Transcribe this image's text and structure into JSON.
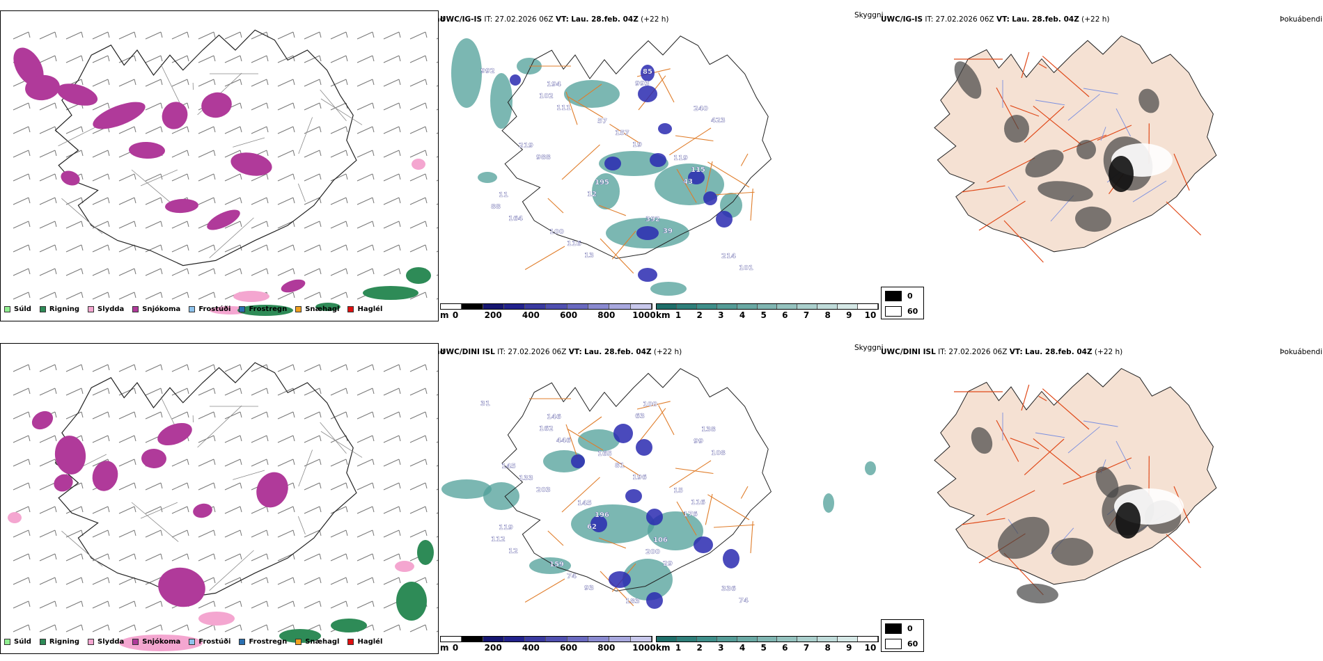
{
  "rows": [
    {
      "model": "UWC/IG-IS",
      "it_label": "IT:",
      "it_value": "27.02.2026 06Z",
      "vt_label": "VT:",
      "vt_value": "Lau. 28.feb. 04Z",
      "lead": "(+22 h)",
      "p1_type": "Úrkomutegund",
      "p2_type": "Skyggni",
      "p3_type": "Þokuábendi",
      "cloud_labels": [
        "992",
        "111",
        "19",
        "43",
        "164",
        "13",
        "993",
        "423",
        "988",
        "12",
        "39",
        "101",
        "102",
        "157",
        "115",
        "88",
        "116",
        "85",
        "240",
        "219",
        "195",
        "392",
        "214",
        "194",
        "57",
        "119",
        "11",
        "100"
      ]
    },
    {
      "model": "UWC/DINI ISL",
      "it_label": "IT:",
      "it_value": "27.02.2026 06Z",
      "vt_label": "VT:",
      "vt_value": "Lau. 28.feb. 04Z",
      "lead": "(+22 h)",
      "p1_type": "Úrkomutegund",
      "p2_type": "Skyggni",
      "p3_type": "Þokuábendi",
      "cloud_labels": [
        "31",
        "446",
        "196",
        "176",
        "12",
        "93",
        "63",
        "108",
        "203",
        "62",
        "29",
        "74",
        "162",
        "81",
        "116",
        "112",
        "74",
        "100",
        "99",
        "133",
        "196",
        "200",
        "336",
        "146",
        "165",
        "15",
        "119",
        "159",
        "183",
        "138",
        "145",
        "145",
        "106"
      ]
    }
  ],
  "precip_legend": [
    {
      "label": "Súld",
      "color": "#90ee90"
    },
    {
      "label": "Rigning",
      "color": "#2e8b57"
    },
    {
      "label": "Slydda",
      "color": "#f4a6d0"
    },
    {
      "label": "Snjókoma",
      "color": "#b03a9a"
    },
    {
      "label": "Frostúði",
      "color": "#8ec3ec"
    },
    {
      "label": "Frostregn",
      "color": "#2a6fb0"
    },
    {
      "label": "Snæhagl",
      "color": "#f0a020"
    },
    {
      "label": "Haglél",
      "color": "#e01010"
    }
  ],
  "cloudbase_bar": {
    "unit": "m",
    "ticks": [
      "0",
      "200",
      "400",
      "600",
      "800",
      "1000"
    ],
    "colors": [
      "#ffffff",
      "#000000",
      "#161670",
      "#22228c",
      "#3a3aa0",
      "#5050b0",
      "#6a6ac0",
      "#8a8ad0",
      "#a8a8de",
      "#c8c8ec"
    ]
  },
  "visibility_bar": {
    "unit": "km",
    "ticks": [
      "1",
      "2",
      "3",
      "4",
      "5",
      "6",
      "7",
      "8",
      "9",
      "10"
    ],
    "colors": [
      "#1f6f6a",
      "#2f7f7a",
      "#3f8f8a",
      "#559c97",
      "#6aa9a4",
      "#80b6b2",
      "#95c3bf",
      "#abd0cd",
      "#c0dcda",
      "#d6e9e7",
      "#ffffff"
    ]
  },
  "fog_box": {
    "labels": [
      "0",
      "60"
    ]
  }
}
